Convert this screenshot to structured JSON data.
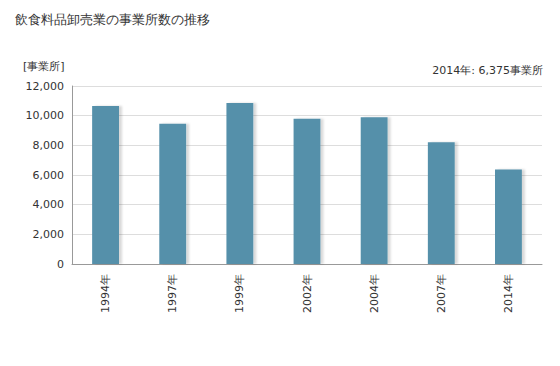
{
  "chart_data": {
    "type": "bar",
    "title": "飲食料品卸売業の事業所数の推移",
    "y_label": "[事業所]",
    "annotation": "2014年: 6,375事業所",
    "categories": [
      "1994年",
      "1997年",
      "1999年",
      "2002年",
      "2004年",
      "2007年",
      "2014年"
    ],
    "values": [
      10650,
      9450,
      10850,
      9800,
      9900,
      8200,
      6375
    ],
    "color": "#5490aa",
    "ylim": [
      0,
      12000
    ],
    "yticks": [
      0,
      {
        "value": 2000,
        "label": "2,000"
      },
      {
        "value": 4000,
        "label": "4,000"
      },
      {
        "value": 6000,
        "label": "6,000"
      },
      {
        "value": 8000,
        "label": "8,000"
      },
      {
        "value": 10000,
        "label": "10,000"
      },
      {
        "value": 12000,
        "label": "12,000"
      }
    ],
    "grid": true
  }
}
